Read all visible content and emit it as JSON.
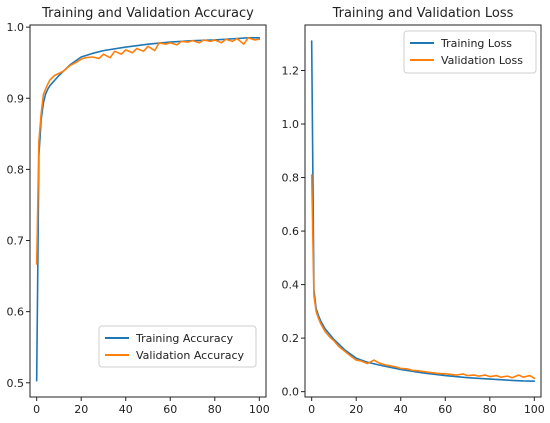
{
  "chart_data": [
    {
      "type": "line",
      "title": "Training and Validation Accuracy",
      "xlabel": "",
      "ylabel": "",
      "xlim": [
        -3,
        103
      ],
      "ylim": [
        0.48,
        1.003
      ],
      "xticks": [
        0,
        20,
        40,
        60,
        80,
        100
      ],
      "yticks": [
        0.5,
        0.6,
        0.7,
        0.8,
        0.9,
        1.0
      ],
      "xtick_labels": [
        "0",
        "20",
        "40",
        "60",
        "80",
        "100"
      ],
      "ytick_labels": [
        "0.5",
        "0.6",
        "0.7",
        "0.8",
        "0.9",
        "1.0"
      ],
      "legend_position": "lower-right",
      "grid": false,
      "series": [
        {
          "name": "Training Accuracy",
          "color": "#1f77b4",
          "x": [
            0,
            1,
            2,
            3,
            4,
            5,
            6,
            8,
            10,
            15,
            20,
            25,
            30,
            40,
            50,
            60,
            70,
            80,
            90,
            95,
            100
          ],
          "y": [
            0.503,
            0.82,
            0.87,
            0.893,
            0.906,
            0.913,
            0.918,
            0.925,
            0.932,
            0.947,
            0.958,
            0.963,
            0.967,
            0.972,
            0.976,
            0.979,
            0.981,
            0.982,
            0.984,
            0.985,
            0.985
          ]
        },
        {
          "name": "Validation Accuracy",
          "color": "#ff7f0e",
          "x": [
            0,
            1,
            2,
            3,
            4,
            5,
            6,
            8,
            10,
            12,
            15,
            18,
            20,
            22,
            25,
            28,
            30,
            33,
            35,
            38,
            40,
            43,
            45,
            48,
            50,
            53,
            55,
            58,
            60,
            63,
            65,
            68,
            70,
            73,
            75,
            78,
            80,
            83,
            85,
            88,
            90,
            93,
            95,
            98,
            100
          ],
          "y": [
            0.667,
            0.84,
            0.878,
            0.905,
            0.913,
            0.92,
            0.926,
            0.932,
            0.935,
            0.938,
            0.946,
            0.951,
            0.955,
            0.957,
            0.958,
            0.956,
            0.962,
            0.957,
            0.966,
            0.962,
            0.968,
            0.964,
            0.97,
            0.966,
            0.973,
            0.967,
            0.978,
            0.976,
            0.978,
            0.975,
            0.98,
            0.979,
            0.981,
            0.978,
            0.982,
            0.98,
            0.982,
            0.978,
            0.983,
            0.98,
            0.984,
            0.976,
            0.985,
            0.982,
            0.983
          ]
        }
      ]
    },
    {
      "type": "line",
      "title": "Training and Validation Loss",
      "xlabel": "",
      "ylabel": "",
      "xlim": [
        -3,
        103
      ],
      "ylim": [
        -0.02,
        1.37
      ],
      "xticks": [
        0,
        20,
        40,
        60,
        80,
        100
      ],
      "yticks": [
        0.0,
        0.2,
        0.4,
        0.6,
        0.8,
        1.0,
        1.2
      ],
      "xtick_labels": [
        "0",
        "20",
        "40",
        "60",
        "80",
        "100"
      ],
      "ytick_labels": [
        "0.0",
        "0.2",
        "0.4",
        "0.6",
        "0.8",
        "1.0",
        "1.2"
      ],
      "legend_position": "upper-right",
      "grid": false,
      "series": [
        {
          "name": "Training Loss",
          "color": "#1f77b4",
          "x": [
            0,
            1,
            2,
            3,
            4,
            5,
            6,
            8,
            10,
            15,
            20,
            25,
            30,
            40,
            50,
            60,
            70,
            80,
            90,
            95,
            100
          ],
          "y": [
            1.31,
            0.38,
            0.31,
            0.285,
            0.265,
            0.25,
            0.235,
            0.215,
            0.195,
            0.155,
            0.125,
            0.11,
            0.1,
            0.083,
            0.07,
            0.06,
            0.052,
            0.047,
            0.042,
            0.04,
            0.039
          ]
        },
        {
          "name": "Validation Loss",
          "color": "#ff7f0e",
          "x": [
            0,
            1,
            2,
            3,
            4,
            5,
            6,
            8,
            10,
            12,
            15,
            18,
            20,
            22,
            25,
            28,
            30,
            33,
            35,
            38,
            40,
            43,
            45,
            48,
            50,
            53,
            55,
            58,
            60,
            63,
            65,
            68,
            70,
            73,
            75,
            78,
            80,
            83,
            85,
            88,
            90,
            93,
            95,
            98,
            100
          ],
          "y": [
            0.81,
            0.36,
            0.3,
            0.275,
            0.255,
            0.24,
            0.225,
            0.205,
            0.19,
            0.17,
            0.15,
            0.13,
            0.118,
            0.115,
            0.105,
            0.118,
            0.108,
            0.1,
            0.097,
            0.092,
            0.087,
            0.085,
            0.08,
            0.078,
            0.075,
            0.072,
            0.07,
            0.067,
            0.067,
            0.064,
            0.062,
            0.066,
            0.06,
            0.062,
            0.058,
            0.062,
            0.056,
            0.06,
            0.054,
            0.058,
            0.052,
            0.062,
            0.054,
            0.06,
            0.05
          ]
        }
      ]
    }
  ]
}
